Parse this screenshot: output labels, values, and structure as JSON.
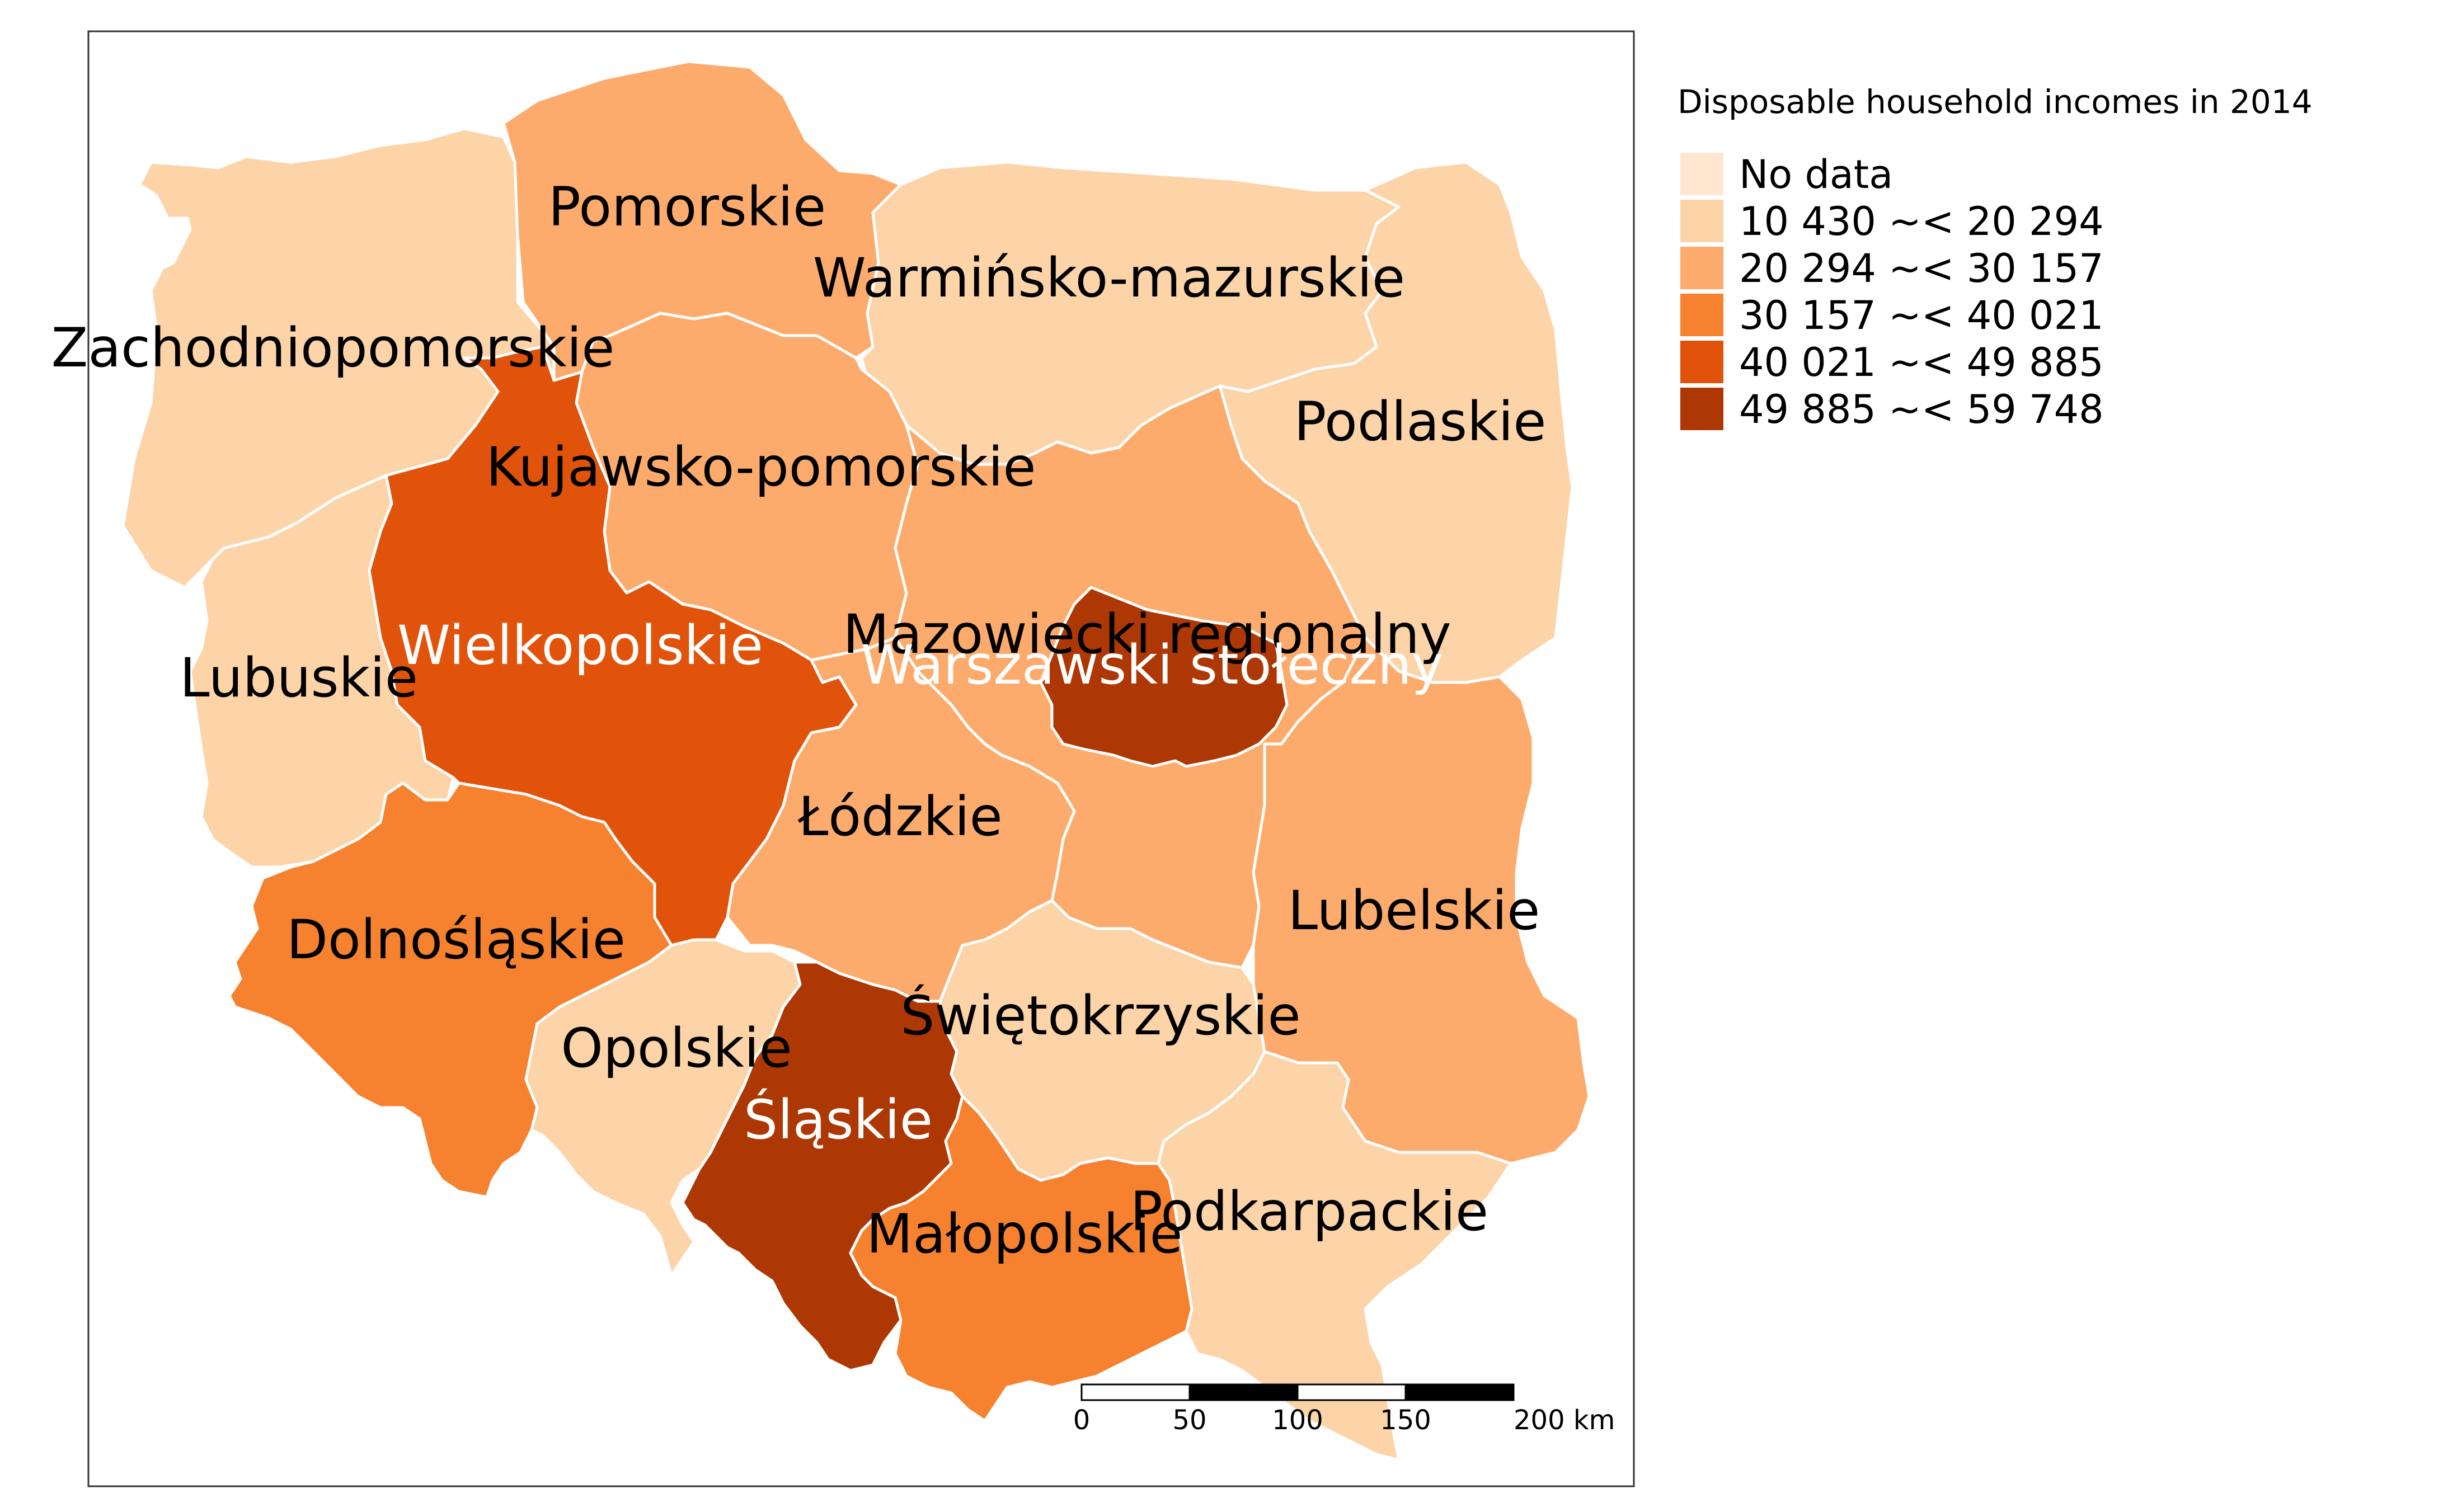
{
  "legend": {
    "title": "Disposable household incomes in 2014",
    "items": [
      {
        "label": "No data",
        "color": "#fee6d1"
      },
      {
        "label": "10 430 ~< 20 294",
        "color": "#fdd3a8"
      },
      {
        "label": "20 294 ~< 30 157",
        "color": "#fdab6c"
      },
      {
        "label": "30 157 ~< 40 021",
        "color": "#f6812f"
      },
      {
        "label": "40 021 ~< 49 885",
        "color": "#e1530a"
      },
      {
        "label": "49 885 ~< 59 748",
        "color": "#ad3803"
      }
    ]
  },
  "regions": [
    {
      "id": "zachodniopomorskie",
      "name": "Zachodniopomorskie",
      "class": 1
    },
    {
      "id": "pomorskie",
      "name": "Pomorskie",
      "class": 2
    },
    {
      "id": "warminsko",
      "name": "Warmińsko-mazurskie",
      "class": 1
    },
    {
      "id": "podlaskie",
      "name": "Podlaskie",
      "class": 1
    },
    {
      "id": "kujawsko",
      "name": "Kujawsko-pomorskie",
      "class": 2
    },
    {
      "id": "lubuskie",
      "name": "Lubuskie",
      "class": 1
    },
    {
      "id": "wielkopolskie",
      "name": "Wielkopolskie",
      "class": 4
    },
    {
      "id": "mazowiecki",
      "name": "Mazowiecki regionalny",
      "class": 2
    },
    {
      "id": "warszawski",
      "name": "Warszawski stołeczny",
      "class": 5
    },
    {
      "id": "lodzkie",
      "name": "Łódzkie",
      "class": 2
    },
    {
      "id": "lubelskie",
      "name": "Lubelskie",
      "class": 2
    },
    {
      "id": "dolnoslaskie",
      "name": "Dolnośląskie",
      "class": 3
    },
    {
      "id": "opolskie",
      "name": "Opolskie",
      "class": 1
    },
    {
      "id": "slaskie",
      "name": "Śląskie",
      "class": 5
    },
    {
      "id": "swietokrzyskie",
      "name": "Świętokrzyskie",
      "class": 1
    },
    {
      "id": "malopolskie",
      "name": "Małopolskie",
      "class": 3
    },
    {
      "id": "podkarpackie",
      "name": "Podkarpackie",
      "class": 1
    }
  ],
  "scalebar": {
    "ticks": [
      "0",
      "50",
      "100",
      "150",
      "200 km"
    ]
  }
}
